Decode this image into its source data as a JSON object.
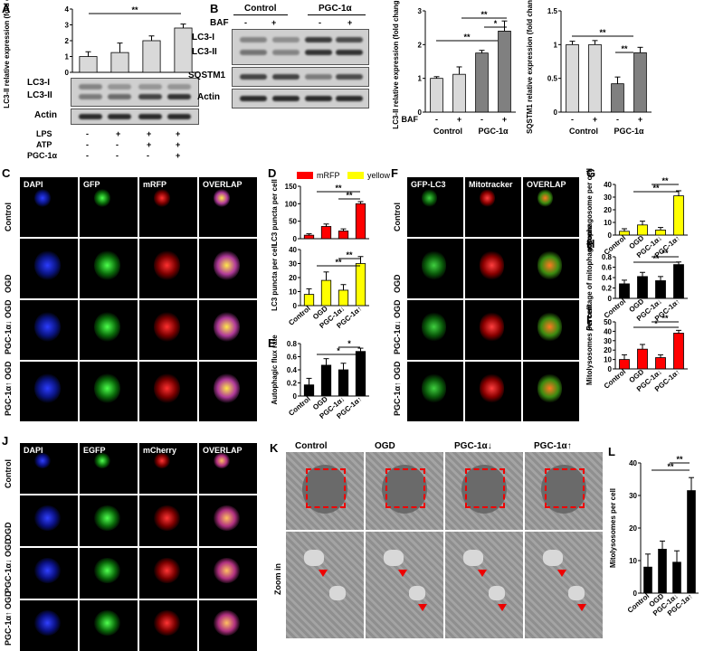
{
  "panels": [
    "A",
    "B",
    "C",
    "D",
    "E",
    "F",
    "G",
    "H",
    "I",
    "J",
    "K",
    "L"
  ],
  "sig": {
    "double": "**",
    "single": "*"
  },
  "colors": {
    "red": "#ff0000",
    "yellow": "#ffff00",
    "black": "#000000",
    "gray": "#808080",
    "lightgray": "#d9d9d9",
    "white": "#ffffff"
  },
  "panel_a": {
    "blot_labels": [
      "LC3-I",
      "LC3-II",
      "Actin"
    ],
    "treat_labels": [
      "LPS",
      "ATP",
      "PGC-1α"
    ],
    "treat_marks": [
      [
        "-",
        "+",
        "+",
        "+"
      ],
      [
        "-",
        "-",
        "+",
        "+"
      ],
      [
        "-",
        "-",
        "-",
        "+"
      ]
    ]
  },
  "panel_b": {
    "group_labels": [
      "Control",
      "PGC-1α"
    ],
    "baf_label": "BAF",
    "baf_marks": [
      "-",
      "+",
      "-",
      "+"
    ],
    "blot_labels": [
      "LC3-I",
      "LC3-II",
      "SQSTM1",
      "Actin"
    ]
  },
  "panel_c": {
    "columns": [
      "DAPI",
      "GFP",
      "mRFP",
      "OVERLAP"
    ],
    "rows": [
      "Control",
      "OGD",
      "PGC-1α↓ OGD",
      "PGC-1α↑ OGD"
    ]
  },
  "panel_f": {
    "columns": [
      "GFP-LC3",
      "Mitotracker",
      "OVERLAP"
    ],
    "rows": [
      "Control",
      "OGD",
      "PGC-1α↓ OGD",
      "PGC-1α↑ OGD"
    ]
  },
  "panel_j": {
    "columns": [
      "DAPI",
      "EGFP",
      "mCherry",
      "OVERLAP"
    ],
    "rows": [
      "Control",
      "OGD",
      "PGC-1α↓ OGD",
      "PGC-1α↑ OGD"
    ]
  },
  "panel_k": {
    "columns": [
      "Control",
      "OGD",
      "PGC-1α↓",
      "PGC-1α↑"
    ],
    "zoom_label": "Zoom in"
  },
  "chart_data": [
    {
      "panel": "A",
      "type": "bar",
      "categories": [
        "1",
        "2",
        "3",
        "4"
      ],
      "values": [
        1.0,
        1.25,
        2.0,
        2.8
      ],
      "errors": [
        0.3,
        0.6,
        0.3,
        0.25
      ],
      "ylabel": "LC3-II relative expression (fold change)",
      "ylim": [
        0,
        4
      ],
      "yticks": [
        0,
        1,
        2,
        3,
        4
      ],
      "colors": [
        "#d9d9d9"
      ]
    },
    {
      "panel": "B1",
      "type": "bar",
      "categories": [
        "-",
        "+",
        "-",
        "+"
      ],
      "groups": [
        "Control",
        "PGC-1α"
      ],
      "xlabel_prefix": "BAF",
      "values": [
        1.0,
        1.12,
        1.75,
        2.4
      ],
      "errors": [
        0.05,
        0.22,
        0.08,
        0.3
      ],
      "ylabel": "LC3-II relative expression (fold change)",
      "ylim": [
        0,
        3
      ],
      "yticks": [
        0,
        1,
        2,
        3
      ],
      "colors": [
        "#d9d9d9",
        "#d9d9d9",
        "#808080",
        "#808080"
      ]
    },
    {
      "panel": "B2",
      "type": "bar",
      "categories": [
        "-",
        "+",
        "-",
        "+"
      ],
      "groups": [
        "Control",
        "PGC-1α"
      ],
      "values": [
        1.0,
        1.0,
        0.42,
        0.88
      ],
      "errors": [
        0.05,
        0.06,
        0.1,
        0.08
      ],
      "ylabel": "SQSTM1 relative expression (fold change)",
      "ylim": [
        0,
        1.5
      ],
      "yticks": [
        0,
        0.5,
        1.0,
        1.5
      ],
      "colors": [
        "#d9d9d9",
        "#d9d9d9",
        "#808080",
        "#808080"
      ]
    },
    {
      "panel": "D1",
      "type": "bar",
      "categories": [
        "Control",
        "OGD",
        "PGC-1α↓",
        "PGC-1α↑"
      ],
      "values": [
        10,
        35,
        22,
        100
      ],
      "errors": [
        4,
        7,
        6,
        6
      ],
      "ylabel": "LC3 puncta per cell",
      "ylim": [
        0,
        150
      ],
      "yticks": [
        0,
        50,
        100,
        150
      ],
      "legend": [
        "mRFP",
        "yellow"
      ],
      "colors": [
        "#ff0000"
      ]
    },
    {
      "panel": "D2",
      "type": "bar",
      "categories": [
        "Control",
        "OGD",
        "PGC-1α↓",
        "PGC-1α↑"
      ],
      "values": [
        8,
        18,
        11,
        30
      ],
      "errors": [
        4,
        6,
        4,
        5
      ],
      "ylabel": "LC3 puncta per cell",
      "ylim": [
        0,
        40
      ],
      "yticks": [
        0,
        10,
        20,
        30,
        40
      ],
      "colors": [
        "#ffff00"
      ]
    },
    {
      "panel": "E",
      "type": "bar",
      "categories": [
        "Control",
        "OGD",
        "PGC-1α↓",
        "PGC-1α↑"
      ],
      "values": [
        0.17,
        0.47,
        0.4,
        0.68
      ],
      "errors": [
        0.1,
        0.1,
        0.1,
        0.05
      ],
      "ylabel": "Autophagic flux rate",
      "ylim": [
        0,
        0.8
      ],
      "yticks": [
        0,
        0.2,
        0.4,
        0.6,
        0.8
      ],
      "colors": [
        "#000000"
      ]
    },
    {
      "panel": "G",
      "type": "bar",
      "categories": [
        "Control",
        "OGD",
        "PGC-1α↓",
        "PGC-1α↑"
      ],
      "values": [
        3,
        8,
        4,
        31
      ],
      "errors": [
        2,
        3,
        2,
        4
      ],
      "ylabel": "mitophagosome per cell",
      "ylim": [
        0,
        40
      ],
      "yticks": [
        0,
        10,
        20,
        30,
        40
      ],
      "colors": [
        "#ffff00"
      ]
    },
    {
      "panel": "H",
      "type": "bar",
      "categories": [
        "Control",
        "OGD",
        "PGC-1α↓",
        "PGC-1α↑"
      ],
      "values": [
        0.28,
        0.42,
        0.34,
        0.65
      ],
      "errors": [
        0.07,
        0.08,
        0.08,
        0.05
      ],
      "ylabel": "Percentage of mitophagosome",
      "ylim": [
        0,
        0.8
      ],
      "yticks": [
        0,
        0.2,
        0.4,
        0.6,
        0.8
      ],
      "colors": [
        "#000000"
      ]
    },
    {
      "panel": "I",
      "type": "bar",
      "categories": [
        "Control",
        "OGD",
        "PGC-1α↓",
        "PGC-1α↑"
      ],
      "values": [
        10,
        21,
        12,
        38
      ],
      "errors": [
        5,
        5,
        3,
        3
      ],
      "ylabel": "Mitolysosomes per cell",
      "ylim": [
        0,
        50
      ],
      "yticks": [
        0,
        10,
        20,
        30,
        40,
        50
      ],
      "colors": [
        "#ff0000"
      ]
    },
    {
      "panel": "L",
      "type": "bar",
      "categories": [
        "Control",
        "OGD",
        "PGC-1α↓",
        "PGC-1α↑"
      ],
      "values": [
        8,
        13.5,
        9.5,
        31.5
      ],
      "errors": [
        4,
        2.5,
        3.5,
        4
      ],
      "ylabel": "Mitolysosomes per cell",
      "ylim": [
        0,
        40
      ],
      "yticks": [
        0,
        10,
        20,
        30,
        40
      ],
      "colors": [
        "#000000"
      ]
    }
  ]
}
